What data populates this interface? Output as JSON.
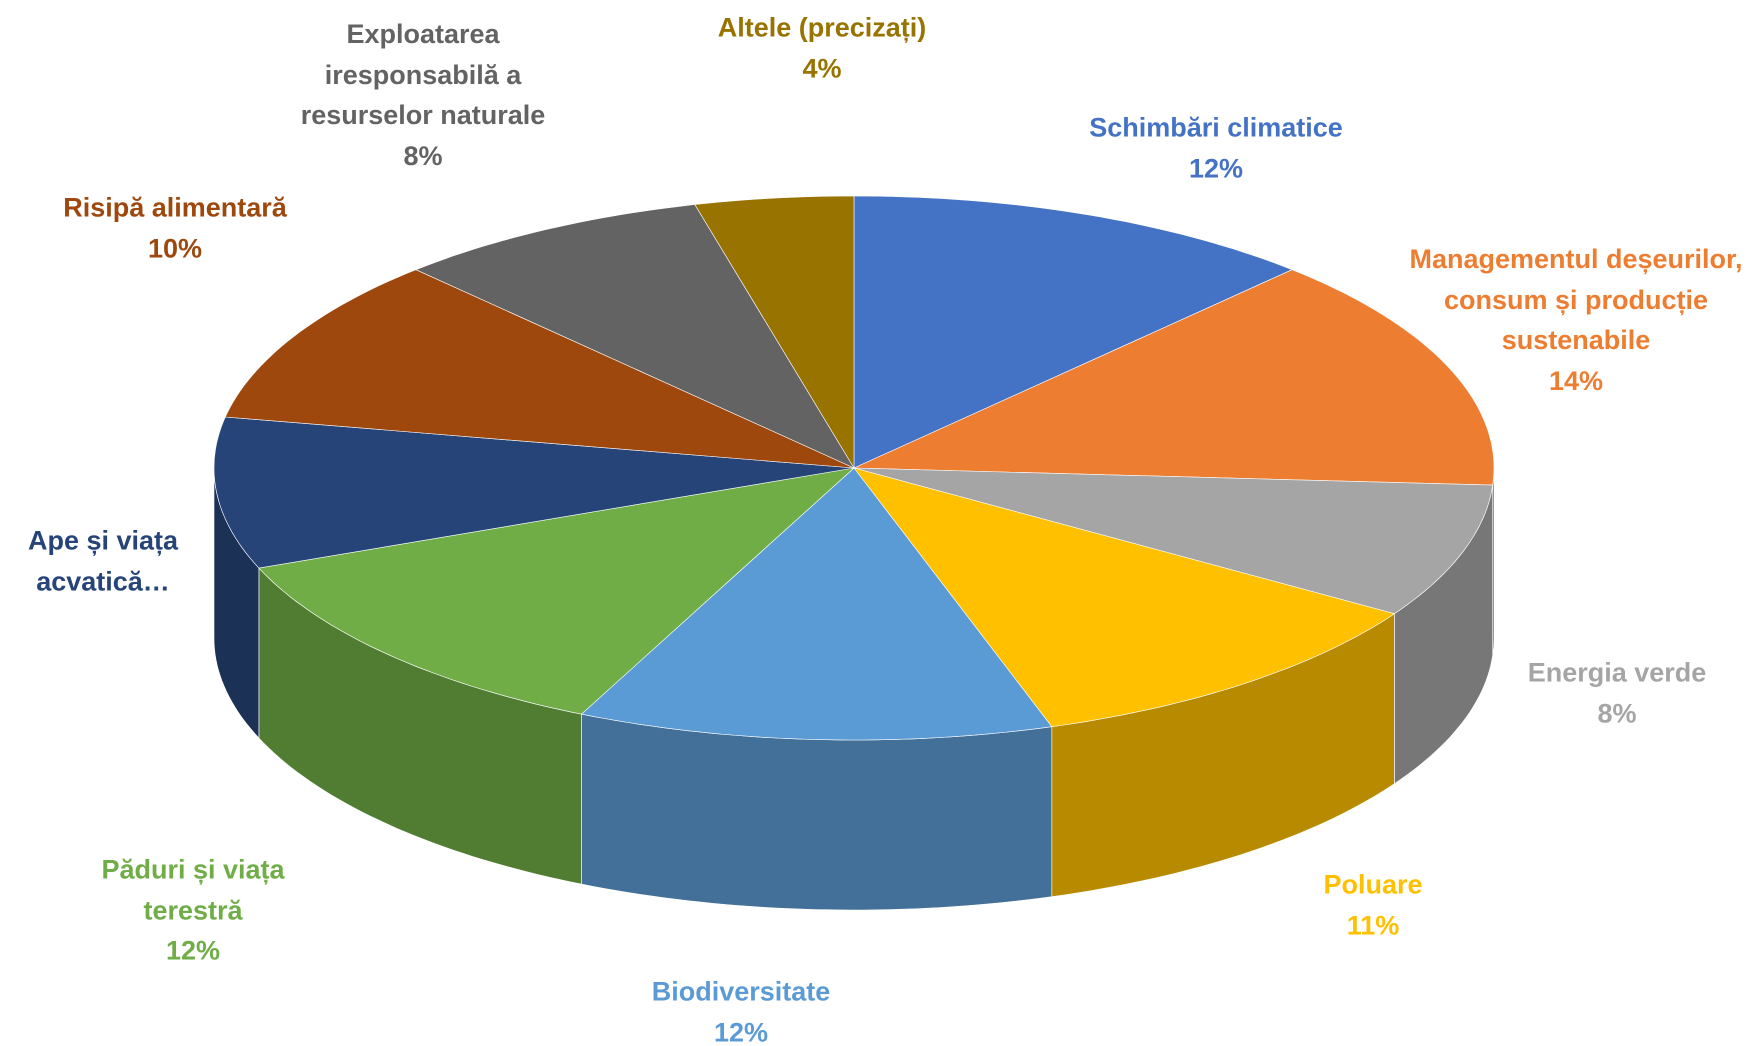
{
  "chart_data": {
    "type": "pie3d",
    "categories": [
      "Schimbări climatice",
      "Managementul deșeurilor, consum și producție sustenabile",
      "Energia verde",
      "Poluare",
      "Biodiversitate",
      "Păduri și viața terestră",
      "Ape și viața acvatică…",
      "Risipă alimentară",
      "Exploatarea iresponsabilă a resurselor naturale",
      "Altele (precizați)"
    ],
    "values": [
      12,
      14,
      8,
      11,
      12,
      12,
      9,
      10,
      8,
      4
    ],
    "value_labels": [
      "12%",
      "14%",
      "8%",
      "11%",
      "12%",
      "12%",
      null,
      "10%",
      "8%",
      "4%"
    ],
    "colors": [
      "#4472c4",
      "#ed7d31",
      "#a5a5a5",
      "#ffc000",
      "#5b9bd5",
      "#70ad47",
      "#264478",
      "#9e480e",
      "#636363",
      "#997300"
    ]
  }
}
